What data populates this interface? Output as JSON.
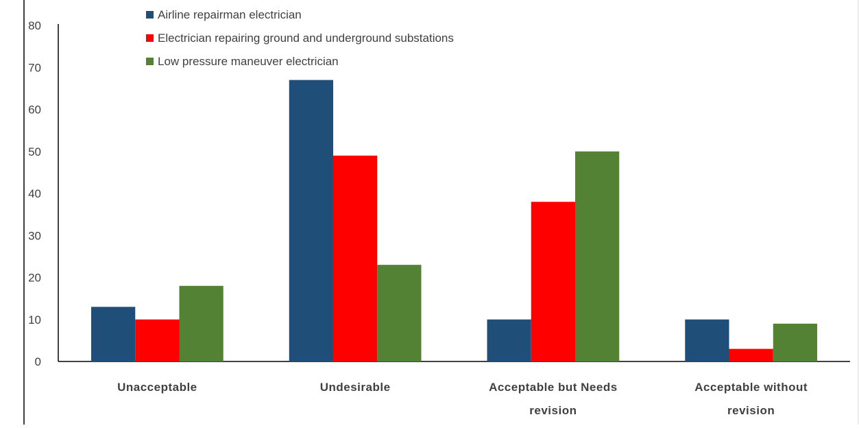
{
  "chart_data": {
    "type": "bar",
    "categories": [
      [
        "Unacceptable"
      ],
      [
        "Undesirable"
      ],
      [
        "Acceptable but Needs",
        "revision"
      ],
      [
        "Acceptable without",
        "revision"
      ]
    ],
    "series": [
      {
        "name": "Airline repairman electrician",
        "color": "#1f4e79",
        "values": [
          13,
          67,
          10,
          10
        ]
      },
      {
        "name": "Electrician repairing ground and underground substations",
        "color": "#ff0000",
        "values": [
          10,
          49,
          38,
          3
        ]
      },
      {
        "name": "Low pressure maneuver electrician",
        "color": "#548235",
        "values": [
          18,
          23,
          50,
          9
        ]
      }
    ],
    "ylim": [
      0,
      80
    ],
    "yticks": [
      0,
      10,
      20,
      30,
      40,
      50,
      60,
      70,
      80
    ],
    "grid": false,
    "legend": "top-left"
  }
}
